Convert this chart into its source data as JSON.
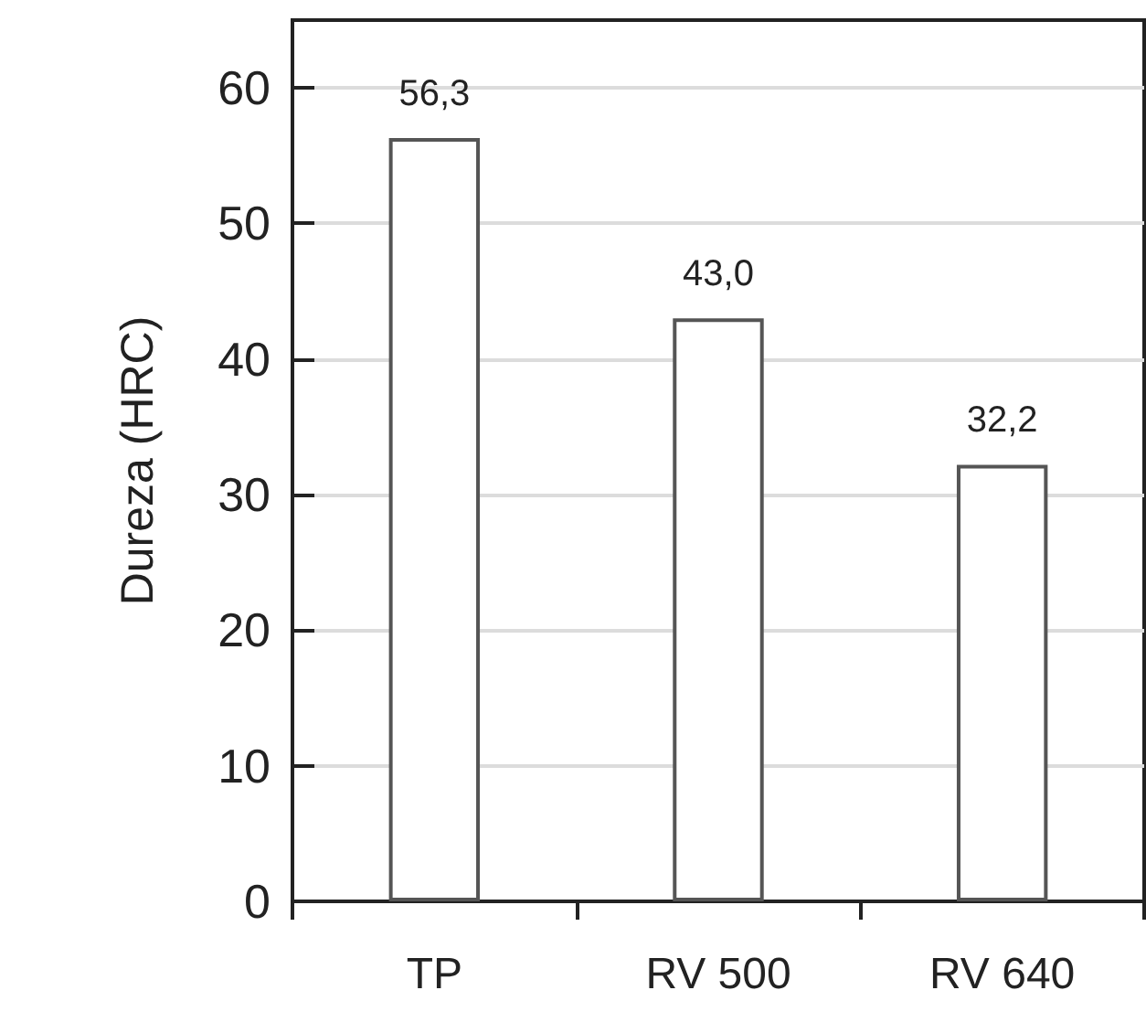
{
  "chart_data": {
    "type": "bar",
    "ylabel": "Dureza (HRC)",
    "categories": [
      "TP",
      "RV 500",
      "RV 640"
    ],
    "values": [
      56.3,
      43.0,
      32.2
    ],
    "value_labels": [
      "56,3",
      "43,0",
      "32,2"
    ],
    "color": "#ffffff",
    "ylim": [
      0,
      65
    ],
    "yticks": [
      0,
      10,
      20,
      30,
      40,
      50,
      60
    ],
    "grid": "y"
  }
}
